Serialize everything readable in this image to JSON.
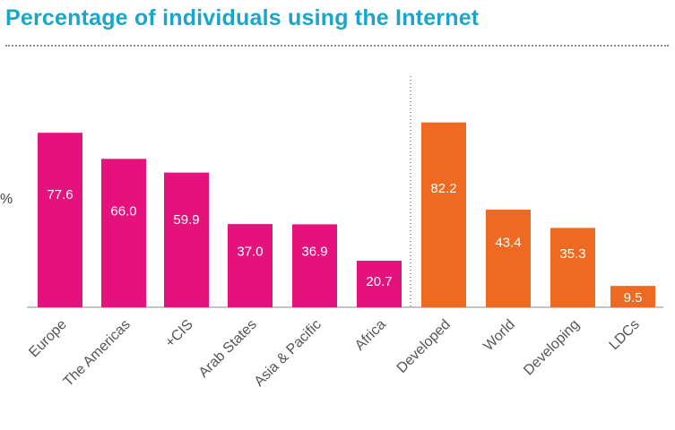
{
  "chart_data": {
    "type": "bar",
    "title": "Percentage of individuals using the Internet",
    "ylabel": "%",
    "xlabel": "",
    "ylim": [
      0,
      90
    ],
    "grid": false,
    "categories": [
      "Europe",
      "The Americas",
      "+CIS",
      "Arab States",
      "Asia & Pacific",
      "Africa",
      "Developed",
      "World",
      "Developing",
      "LDCs"
    ],
    "values": [
      77.6,
      66.0,
      59.9,
      37.0,
      36.9,
      20.7,
      82.2,
      43.4,
      35.3,
      9.5
    ],
    "value_labels": [
      "77.6",
      "66.0",
      "59.9",
      "37.0",
      "36.9",
      "20.7",
      "82.2",
      "43.4",
      "35.3",
      "9.5"
    ],
    "groups": [
      {
        "categories": [
          "Europe",
          "The Americas",
          "+CIS",
          "Arab States",
          "Asia & Pacific",
          "Africa"
        ],
        "color": "#e5127d"
      },
      {
        "categories": [
          "Developed",
          "World",
          "Developing",
          "LDCs"
        ],
        "color": "#ee6a22"
      }
    ]
  },
  "colors": {
    "title": "#1aa6c8",
    "region_bars": "#e5127d",
    "level_bars": "#ee6a22",
    "axis": "#8a8a8a",
    "label_text": "#555555"
  }
}
